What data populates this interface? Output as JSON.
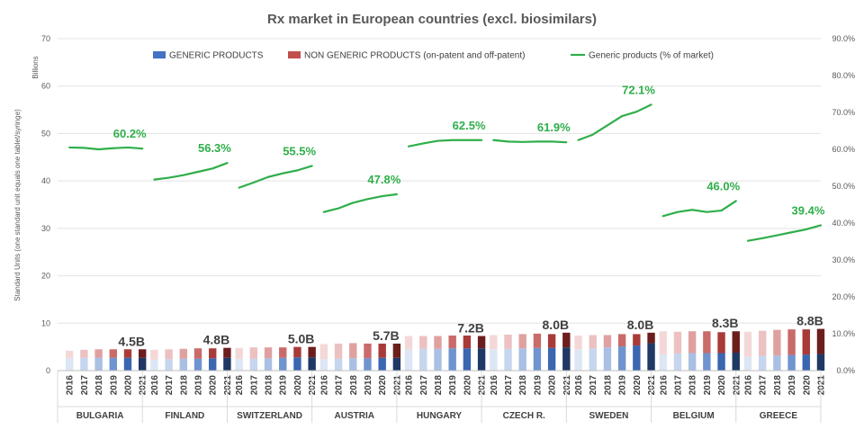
{
  "chart_data": {
    "type": "bar",
    "title": "Rx market in European countries (excl. biosimilars)",
    "ylabel_left": "Standard Units (one standard unit equals one tablet/syringe)",
    "yunit_left": "Billions",
    "ylim_left": [
      0,
      70
    ],
    "yticks_left": [
      "0",
      "10",
      "20",
      "30",
      "40",
      "50",
      "60",
      "70"
    ],
    "ylim_right": [
      0,
      90
    ],
    "yticks_right": [
      "0.0%",
      "10.0%",
      "20.0%",
      "30.0%",
      "40.0%",
      "50.0%",
      "60.0%",
      "70.0%",
      "80.0%",
      "90.0%"
    ],
    "legend": {
      "placement": "top",
      "items": [
        {
          "label": "GENERIC PRODUCTS",
          "color": "#4472c4"
        },
        {
          "label": "NON GENERIC PRODUCTS (on-patent and off-patent)",
          "color": "#c0504d"
        },
        {
          "label": "Generic products (% of market)",
          "color": "#2fae4a"
        }
      ]
    },
    "years": [
      "2016",
      "2017",
      "2018",
      "2019",
      "2020",
      "2021"
    ],
    "colors": {
      "generic": [
        "#dce6f4",
        "#c6d6ee",
        "#a9c0e4",
        "#6f94cf",
        "#3b66b0",
        "#1f3864"
      ],
      "non_generic": [
        "#f4d8d8",
        "#ecc1c1",
        "#dfa1a0",
        "#c96b69",
        "#a83b38",
        "#6b1e1c"
      ],
      "line": "#2fae4a"
    },
    "countries": [
      {
        "name": "BULGARIA",
        "generic": [
          2.6,
          2.7,
          2.7,
          2.7,
          2.7,
          2.7
        ],
        "non_generic": [
          1.6,
          1.7,
          1.8,
          1.8,
          1.8,
          1.8
        ],
        "generic_pct": [
          60.5,
          60.4,
          60.0,
          60.3,
          60.5,
          60.2
        ],
        "total_label": "4.5B",
        "pct_label": "60.2%"
      },
      {
        "name": "FINLAND",
        "generic": [
          2.3,
          2.4,
          2.5,
          2.5,
          2.6,
          2.7
        ],
        "non_generic": [
          2.1,
          2.1,
          2.1,
          2.2,
          2.1,
          2.1
        ],
        "generic_pct": [
          51.8,
          52.3,
          53.0,
          53.9,
          54.8,
          56.3
        ],
        "total_label": "4.8B",
        "pct_label": "56.3%"
      },
      {
        "name": "SWITZERLAND",
        "generic": [
          2.4,
          2.5,
          2.6,
          2.7,
          2.8,
          2.8
        ],
        "non_generic": [
          2.4,
          2.4,
          2.3,
          2.2,
          2.2,
          2.2
        ],
        "generic_pct": [
          49.6,
          51.0,
          52.5,
          53.5,
          54.3,
          55.5
        ],
        "total_label": "5.0B",
        "pct_label": "55.5%"
      },
      {
        "name": "AUSTRIA",
        "generic": [
          2.4,
          2.5,
          2.6,
          2.6,
          2.7,
          2.7
        ],
        "non_generic": [
          3.2,
          3.2,
          3.2,
          3.1,
          3.0,
          3.0
        ],
        "generic_pct": [
          43.0,
          44.0,
          45.5,
          46.5,
          47.3,
          47.8
        ],
        "total_label": "5.7B",
        "pct_label": "47.8%"
      },
      {
        "name": "HUNGARY",
        "generic": [
          4.5,
          4.6,
          4.6,
          4.7,
          4.7,
          4.7
        ],
        "non_generic": [
          2.8,
          2.7,
          2.7,
          2.7,
          2.7,
          2.6
        ],
        "generic_pct": [
          60.8,
          61.6,
          62.3,
          62.5,
          62.5,
          62.5
        ],
        "total_label": "7.2B",
        "pct_label": "62.5%"
      },
      {
        "name": "CZECH R.",
        "generic": [
          4.5,
          4.6,
          4.7,
          4.8,
          4.8,
          4.9
        ],
        "non_generic": [
          3.0,
          3.0,
          3.0,
          3.0,
          2.9,
          3.1
        ],
        "generic_pct": [
          62.5,
          62.1,
          62.0,
          62.1,
          62.1,
          61.9
        ],
        "total_label": "8.0B",
        "pct_label": "61.9%"
      },
      {
        "name": "SWEDEN",
        "generic": [
          4.5,
          4.7,
          4.9,
          5.1,
          5.3,
          5.8
        ],
        "non_generic": [
          2.9,
          2.8,
          2.6,
          2.6,
          2.4,
          2.2
        ],
        "generic_pct": [
          62.5,
          64.0,
          66.5,
          69.0,
          70.2,
          72.1
        ],
        "total_label": "8.0B",
        "pct_label": "72.1%"
      },
      {
        "name": "BELGIUM",
        "generic": [
          3.5,
          3.6,
          3.7,
          3.7,
          3.7,
          3.8
        ],
        "non_generic": [
          4.8,
          4.6,
          4.6,
          4.6,
          4.4,
          4.5
        ],
        "generic_pct": [
          41.9,
          43.0,
          43.6,
          43.0,
          43.4,
          46.0
        ],
        "total_label": "8.3B",
        "pct_label": "46.0%"
      },
      {
        "name": "GREECE",
        "generic": [
          2.9,
          3.1,
          3.2,
          3.3,
          3.4,
          3.5
        ],
        "non_generic": [
          5.3,
          5.3,
          5.4,
          5.4,
          5.3,
          5.3
        ],
        "generic_pct": [
          35.2,
          35.9,
          36.7,
          37.5,
          38.3,
          39.4
        ],
        "total_label": "8.8B",
        "pct_label": "39.4%"
      }
    ]
  }
}
